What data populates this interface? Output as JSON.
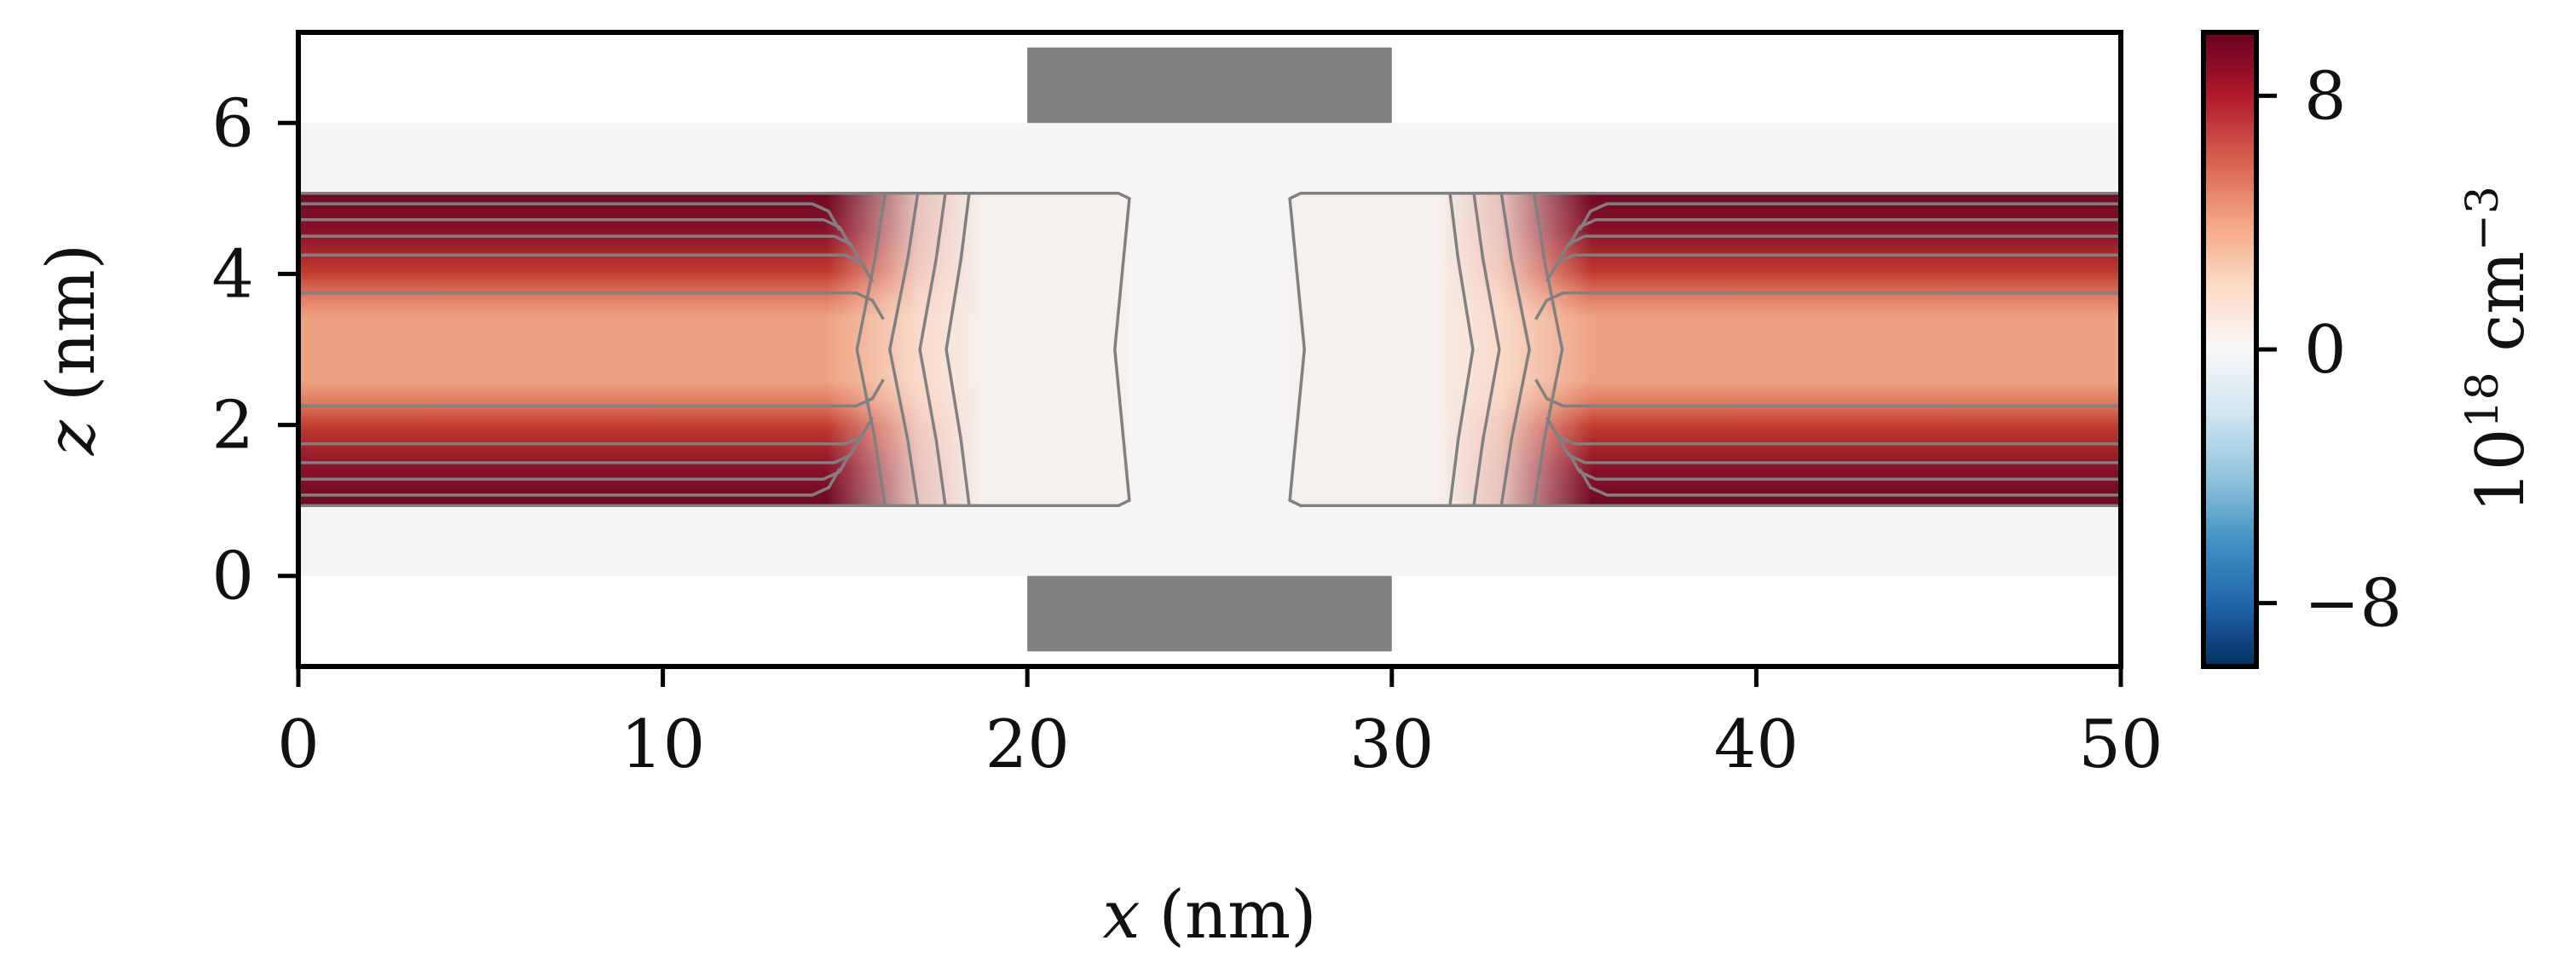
{
  "chart_data": {
    "type": "heatmap",
    "title": "",
    "xlabel_var": "x",
    "xlabel_unit": "(nm)",
    "ylabel_var": "z",
    "ylabel_unit": "(nm)",
    "xlim": [
      0,
      50
    ],
    "ylim": [
      -1.2,
      7.2
    ],
    "xticks": [
      0,
      10,
      20,
      30,
      40,
      50
    ],
    "yticks": [
      0,
      2,
      4,
      6
    ],
    "grid": false,
    "regions": {
      "oxide": {
        "x": [
          0,
          50
        ],
        "z": [
          0,
          6
        ],
        "color": "#f5f5f5"
      },
      "gate_top": {
        "x": [
          20,
          30
        ],
        "z": [
          6,
          7
        ],
        "color": "#808080"
      },
      "gate_bottom": {
        "x": [
          20,
          30
        ],
        "z": [
          -1,
          0
        ],
        "color": "#808080"
      },
      "channel": {
        "x": [
          0,
          50
        ],
        "z": [
          0.93,
          5.07
        ]
      },
      "dense_doping": {
        "z_ranges": [
          [
            0.93,
            2.55
          ],
          [
            3.45,
            5.07
          ]
        ],
        "x_end_left": 14.5,
        "x_start_right": 35.5
      },
      "transition_left": {
        "x": [
          14.5,
          18.7
        ]
      },
      "depleted_left": {
        "x": [
          18.7,
          22.8
        ]
      },
      "depleted_right": {
        "x": [
          27.2,
          31.3
        ]
      },
      "transition_right": {
        "x": [
          31.3,
          35.5
        ]
      }
    },
    "colorbar": {
      "colormap": "RdBu_r",
      "range": [
        -10,
        10
      ],
      "ticks": [
        -8,
        0,
        8
      ],
      "tick_labels": [
        "−8",
        "0",
        "8"
      ],
      "label_base": "10",
      "label_exp1": "18",
      "label_unit": "cm",
      "label_exp2": "−3"
    }
  }
}
